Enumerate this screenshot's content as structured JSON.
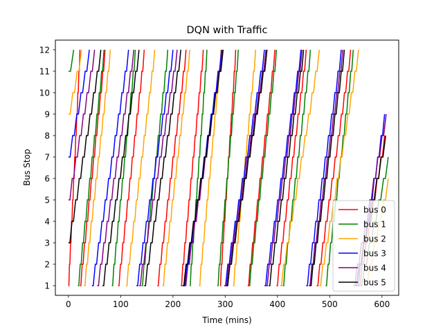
{
  "chart_data": {
    "type": "line",
    "title": "DQN with Traffic",
    "xlabel": "Time (mins)",
    "ylabel": "Bus Stop",
    "xlim": [
      -25,
      632
    ],
    "ylim": [
      0.55,
      12.45
    ],
    "x_ticks": [
      0,
      100,
      200,
      300,
      400,
      500,
      600
    ],
    "y_ticks": [
      1,
      2,
      3,
      4,
      5,
      6,
      7,
      8,
      9,
      10,
      11,
      12
    ],
    "grid": false,
    "legend_position": "lower-right",
    "series": [
      {
        "name": "bus 0",
        "color": "#ff0000",
        "trips": [
          {
            "start_time": 0,
            "start_stop": 1,
            "end_time": 22,
            "end_stop": 12
          },
          {
            "start_time": 22,
            "start_stop": 1,
            "end_time": 70,
            "end_stop": 12
          },
          {
            "start_time": 95,
            "start_stop": 1,
            "end_time": 145,
            "end_stop": 12
          },
          {
            "start_time": 170,
            "start_stop": 1,
            "end_time": 225,
            "end_stop": 12
          },
          {
            "start_time": 215,
            "start_stop": 1,
            "end_time": 258,
            "end_stop": 12
          },
          {
            "start_time": 290,
            "start_stop": 1,
            "end_time": 320,
            "end_stop": 12
          },
          {
            "start_time": 343,
            "start_stop": 1,
            "end_time": 395,
            "end_stop": 12
          },
          {
            "start_time": 398,
            "start_stop": 1,
            "end_time": 455,
            "end_stop": 12
          },
          {
            "start_time": 475,
            "start_stop": 1,
            "end_time": 540,
            "end_stop": 12
          },
          {
            "start_time": 555,
            "start_stop": 1,
            "end_time": 605,
            "end_stop": 8
          }
        ]
      },
      {
        "name": "bus 1",
        "color": "#008000",
        "trips": [
          {
            "start_time": 0,
            "start_stop": 11,
            "end_time": 10,
            "end_stop": 12
          },
          {
            "start_time": 18,
            "start_stop": 1,
            "end_time": 68,
            "end_stop": 12
          },
          {
            "start_time": 83,
            "start_stop": 1,
            "end_time": 128,
            "end_stop": 12
          },
          {
            "start_time": 140,
            "start_stop": 1,
            "end_time": 190,
            "end_stop": 12
          },
          {
            "start_time": 232,
            "start_stop": 1,
            "end_time": 265,
            "end_stop": 12
          },
          {
            "start_time": 285,
            "start_stop": 1,
            "end_time": 325,
            "end_stop": 12
          },
          {
            "start_time": 345,
            "start_stop": 1,
            "end_time": 398,
            "end_stop": 12
          },
          {
            "start_time": 410,
            "start_stop": 1,
            "end_time": 463,
            "end_stop": 12
          },
          {
            "start_time": 492,
            "start_stop": 1,
            "end_time": 545,
            "end_stop": 12
          },
          {
            "start_time": 558,
            "start_stop": 1,
            "end_time": 612,
            "end_stop": 7
          }
        ]
      },
      {
        "name": "bus 2",
        "color": "#ffa500",
        "trips": [
          {
            "start_time": 0,
            "start_stop": 9,
            "end_time": 25,
            "end_stop": 12
          },
          {
            "start_time": 30,
            "start_stop": 1,
            "end_time": 80,
            "end_stop": 12
          },
          {
            "start_time": 110,
            "start_stop": 1,
            "end_time": 165,
            "end_stop": 12
          },
          {
            "start_time": 180,
            "start_stop": 1,
            "end_time": 232,
            "end_stop": 12
          },
          {
            "start_time": 250,
            "start_stop": 1,
            "end_time": 292,
            "end_stop": 12
          },
          {
            "start_time": 315,
            "start_stop": 1,
            "end_time": 358,
            "end_stop": 12
          },
          {
            "start_time": 405,
            "start_stop": 1,
            "end_time": 480,
            "end_stop": 12
          },
          {
            "start_time": 480,
            "start_stop": 1,
            "end_time": 555,
            "end_stop": 12
          },
          {
            "start_time": 568,
            "start_stop": 1,
            "end_time": 612,
            "end_stop": 6
          }
        ]
      },
      {
        "name": "bus 3",
        "color": "#0000ff",
        "trips": [
          {
            "start_time": 0,
            "start_stop": 7,
            "end_time": 40,
            "end_stop": 12
          },
          {
            "start_time": 45,
            "start_stop": 1,
            "end_time": 115,
            "end_stop": 12
          },
          {
            "start_time": 130,
            "start_stop": 1,
            "end_time": 200,
            "end_stop": 12
          },
          {
            "start_time": 220,
            "start_stop": 1,
            "end_time": 293,
            "end_stop": 12
          },
          {
            "start_time": 298,
            "start_stop": 1,
            "end_time": 375,
            "end_stop": 12
          },
          {
            "start_time": 375,
            "start_stop": 1,
            "end_time": 445,
            "end_stop": 12
          },
          {
            "start_time": 455,
            "start_stop": 1,
            "end_time": 522,
            "end_stop": 12
          },
          {
            "start_time": 552,
            "start_stop": 1,
            "end_time": 605,
            "end_stop": 9
          }
        ]
      },
      {
        "name": "bus 4",
        "color": "#800080",
        "trips": [
          {
            "start_time": 0,
            "start_stop": 5,
            "end_time": 50,
            "end_stop": 12
          },
          {
            "start_time": 55,
            "start_stop": 1,
            "end_time": 125,
            "end_stop": 12
          },
          {
            "start_time": 135,
            "start_stop": 1,
            "end_time": 208,
            "end_stop": 12
          },
          {
            "start_time": 222,
            "start_stop": 1,
            "end_time": 295,
            "end_stop": 12
          },
          {
            "start_time": 300,
            "start_stop": 1,
            "end_time": 378,
            "end_stop": 12
          },
          {
            "start_time": 378,
            "start_stop": 1,
            "end_time": 447,
            "end_stop": 12
          },
          {
            "start_time": 460,
            "start_stop": 1,
            "end_time": 525,
            "end_stop": 12
          },
          {
            "start_time": 545,
            "start_stop": 1,
            "end_time": 608,
            "end_stop": 9
          }
        ]
      },
      {
        "name": "bus 5",
        "color": "#000000",
        "trips": [
          {
            "start_time": 0,
            "start_stop": 3,
            "end_time": 62,
            "end_stop": 12
          },
          {
            "start_time": 65,
            "start_stop": 1,
            "end_time": 135,
            "end_stop": 12
          },
          {
            "start_time": 145,
            "start_stop": 1,
            "end_time": 215,
            "end_stop": 12
          },
          {
            "start_time": 218,
            "start_stop": 1,
            "end_time": 296,
            "end_stop": 12
          },
          {
            "start_time": 302,
            "start_stop": 1,
            "end_time": 380,
            "end_stop": 12
          },
          {
            "start_time": 383,
            "start_stop": 1,
            "end_time": 450,
            "end_stop": 12
          },
          {
            "start_time": 462,
            "start_stop": 1,
            "end_time": 528,
            "end_stop": 12
          },
          {
            "start_time": 548,
            "start_stop": 1,
            "end_time": 607,
            "end_stop": 8
          }
        ]
      }
    ]
  }
}
